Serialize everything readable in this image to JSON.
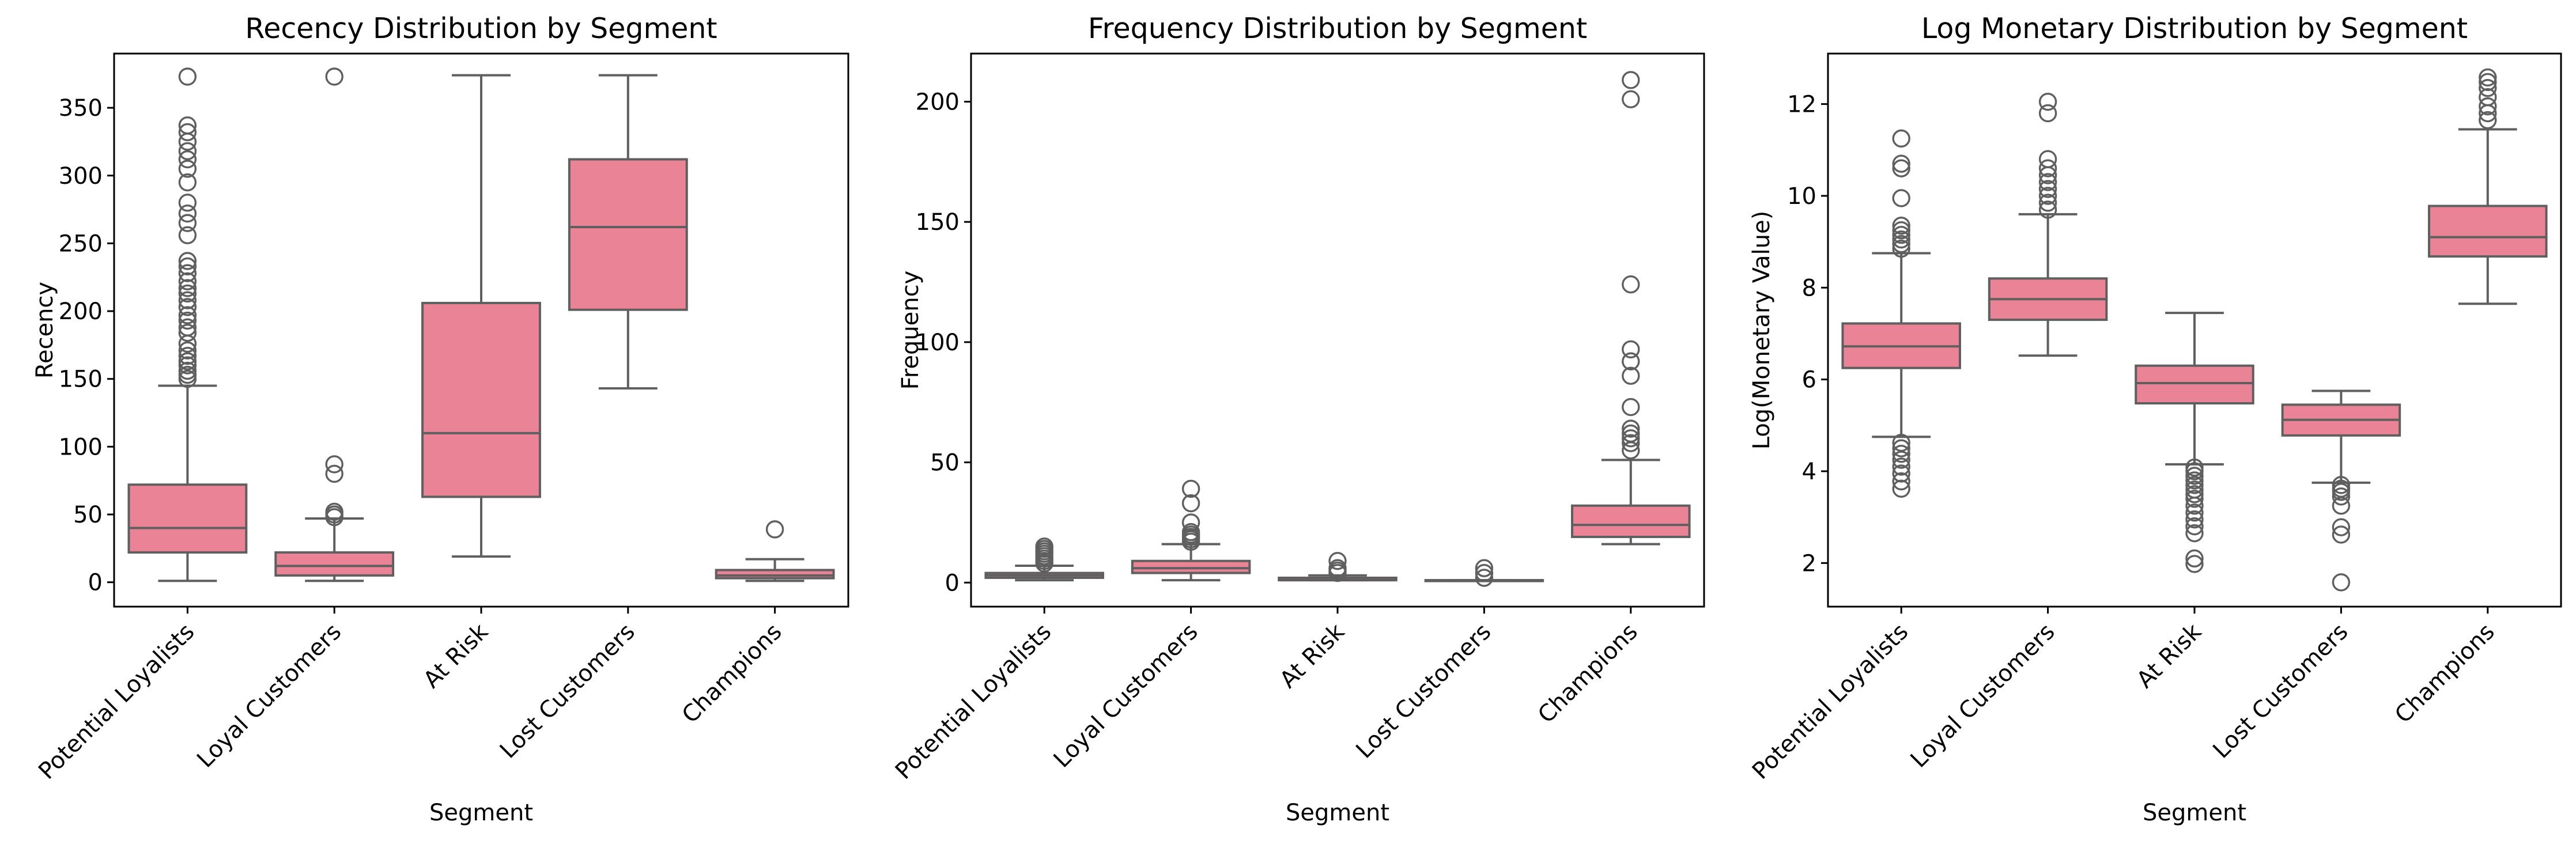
{
  "box_color": "#ea8395",
  "line_color": "#5f5f5f",
  "chart_data": [
    {
      "type": "box",
      "title": "Recency Distribution by Segment",
      "xlabel": "Segment",
      "ylabel": "Recency",
      "categories": [
        "Potential Loyalists",
        "Loyal Customers",
        "At Risk",
        "Lost Customers",
        "Champions"
      ],
      "yticks": [
        0,
        50,
        100,
        150,
        200,
        250,
        300,
        350
      ],
      "ylim": [
        -18,
        390
      ],
      "boxes": [
        {
          "whisker_low": 1,
          "q1": 22,
          "median": 40,
          "q3": 72,
          "whisker_high": 145,
          "fliers": [
            150,
            153,
            156,
            160,
            163,
            167,
            171,
            176,
            184,
            188,
            193,
            197,
            203,
            208,
            213,
            217,
            222,
            228,
            233,
            237,
            256,
            265,
            272,
            280,
            295,
            305,
            312,
            318,
            325,
            332,
            337,
            373
          ]
        },
        {
          "whisker_low": 1,
          "q1": 5,
          "median": 12,
          "q3": 22,
          "whisker_high": 47,
          "fliers": [
            48,
            50,
            52,
            80,
            87,
            373
          ]
        },
        {
          "whisker_low": 19,
          "q1": 63,
          "median": 110,
          "q3": 206,
          "whisker_high": 374,
          "fliers": []
        },
        {
          "whisker_low": 143,
          "q1": 201,
          "median": 262,
          "q3": 312,
          "whisker_high": 374,
          "fliers": []
        },
        {
          "whisker_low": 1,
          "q1": 3,
          "median": 5,
          "q3": 9,
          "whisker_high": 17,
          "fliers": [
            39
          ]
        }
      ]
    },
    {
      "type": "box",
      "title": "Frequency Distribution by Segment",
      "xlabel": "Segment",
      "ylabel": "Frequency",
      "categories": [
        "Potential Loyalists",
        "Loyal Customers",
        "At Risk",
        "Lost Customers",
        "Champions"
      ],
      "yticks": [
        0,
        50,
        100,
        150,
        200
      ],
      "ylim": [
        -10,
        220
      ],
      "boxes": [
        {
          "whisker_low": 1,
          "q1": 2,
          "median": 3,
          "q3": 4,
          "whisker_high": 7,
          "fliers": [
            8,
            9,
            10,
            11,
            12,
            13,
            14,
            15
          ]
        },
        {
          "whisker_low": 1,
          "q1": 4,
          "median": 6,
          "q3": 9,
          "whisker_high": 16,
          "fliers": [
            17,
            18,
            19,
            20,
            21,
            25,
            33,
            39
          ]
        },
        {
          "whisker_low": 1,
          "q1": 1,
          "median": 1,
          "q3": 2,
          "whisker_high": 3,
          "fliers": [
            4,
            5,
            6,
            9
          ]
        },
        {
          "whisker_low": 1,
          "q1": 1,
          "median": 1,
          "q3": 1,
          "whisker_high": 1,
          "fliers": [
            2,
            4,
            6
          ]
        },
        {
          "whisker_low": 16,
          "q1": 19,
          "median": 24,
          "q3": 32,
          "whisker_high": 51,
          "fliers": [
            55,
            58,
            60,
            62,
            64,
            73,
            86,
            92,
            97,
            124,
            201,
            209
          ]
        }
      ]
    },
    {
      "type": "box",
      "title": "Log Monetary Distribution by Segment",
      "xlabel": "Segment",
      "ylabel": "Log(Monetary Value)",
      "categories": [
        "Potential Loyalists",
        "Loyal Customers",
        "At Risk",
        "Lost Customers",
        "Champions"
      ],
      "yticks": [
        2,
        4,
        6,
        8,
        10,
        12
      ],
      "ylim": [
        1.05,
        13.1
      ],
      "boxes": [
        {
          "whisker_low": 4.75,
          "q1": 6.25,
          "median": 6.72,
          "q3": 7.22,
          "whisker_high": 8.75,
          "fliers": [
            3.62,
            3.78,
            3.95,
            4.1,
            4.25,
            4.38,
            4.5,
            4.62,
            8.85,
            8.95,
            9.05,
            9.15,
            9.25,
            9.35,
            9.95,
            10.6,
            10.7,
            11.25
          ]
        },
        {
          "whisker_low": 6.52,
          "q1": 7.3,
          "median": 7.75,
          "q3": 8.2,
          "whisker_high": 9.6,
          "fliers": [
            9.7,
            9.85,
            10.0,
            10.15,
            10.3,
            10.45,
            10.6,
            10.8,
            11.8,
            12.05
          ]
        },
        {
          "whisker_low": 4.15,
          "q1": 5.48,
          "median": 5.92,
          "q3": 6.3,
          "whisker_high": 7.45,
          "fliers": [
            1.98,
            2.1,
            2.65,
            2.8,
            2.95,
            3.1,
            3.25,
            3.4,
            3.5,
            3.6,
            3.7,
            3.8,
            3.9,
            4.0,
            4.08
          ]
        },
        {
          "whisker_low": 3.75,
          "q1": 4.78,
          "median": 5.12,
          "q3": 5.45,
          "whisker_high": 5.75,
          "fliers": [
            1.58,
            2.62,
            2.78,
            3.25,
            3.45,
            3.55,
            3.62,
            3.7
          ]
        },
        {
          "whisker_low": 7.65,
          "q1": 8.68,
          "median": 9.1,
          "q3": 9.78,
          "whisker_high": 11.45,
          "fliers": [
            11.65,
            11.8,
            11.95,
            12.15,
            12.35,
            12.48,
            12.58
          ]
        }
      ]
    }
  ]
}
